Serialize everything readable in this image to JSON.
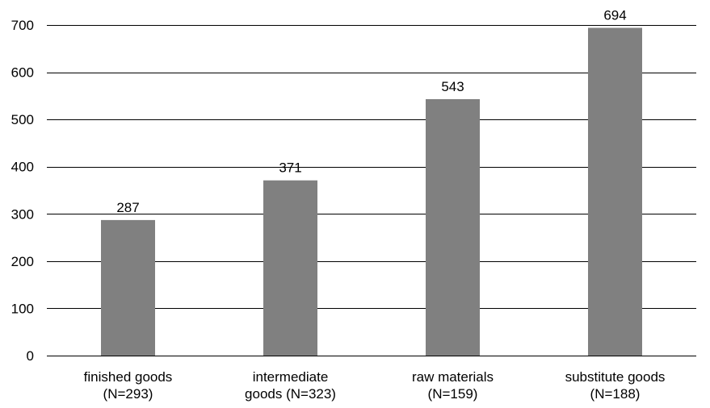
{
  "chart_data": {
    "type": "bar",
    "title": "",
    "xlabel": "",
    "ylabel": "",
    "categories": [
      [
        "finished goods",
        "(N=293)"
      ],
      [
        "intermediate",
        "goods (N=323)"
      ],
      [
        "raw materials",
        "(N=159)"
      ],
      [
        "substitute goods",
        "(N=188)"
      ]
    ],
    "values": [
      287,
      371,
      543,
      694
    ],
    "data_labels": [
      "287",
      "371",
      "543",
      "694"
    ],
    "ylim": [
      0,
      700
    ],
    "yticks": [
      0,
      100,
      200,
      300,
      400,
      500,
      600,
      700
    ],
    "grid": true,
    "legend": "none",
    "bar_color": "#808080"
  }
}
